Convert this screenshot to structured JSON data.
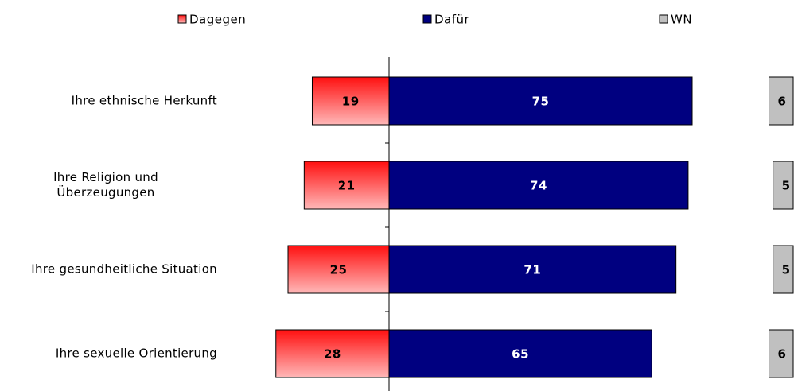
{
  "chart_data": {
    "type": "diverging_bar",
    "categories": [
      "Ihre ethnische Herkunft",
      "Ihre Religion und\nÜberzeugungen",
      "Ihre gesundheitliche Situation",
      "Ihre sexuelle Orientierung"
    ],
    "series": [
      {
        "name": "Dagegen",
        "color": "#ff2020",
        "values": [
          19,
          21,
          25,
          28
        ]
      },
      {
        "name": "Dafür",
        "color": "#000080",
        "values": [
          75,
          74,
          71,
          65
        ]
      },
      {
        "name": "WN",
        "color": "#c0c0c0",
        "values": [
          6,
          5,
          5,
          6
        ]
      }
    ]
  }
}
